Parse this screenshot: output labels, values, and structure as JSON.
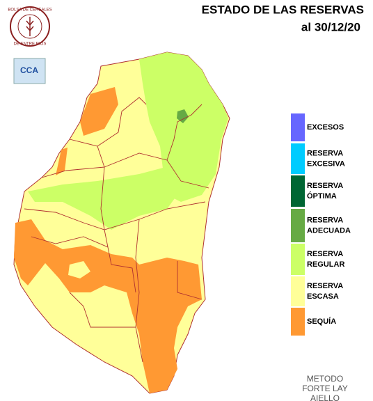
{
  "header": {
    "title": "ESTADO DE LAS RESERVAS",
    "date": "al 30/12/20"
  },
  "logo": {
    "ring_top": "BOLSA DE CEREALES",
    "ring_bottom": "DE ENTRE RIOS",
    "badge": "CCA"
  },
  "legend": [
    {
      "lines": [
        "EXCESOS"
      ],
      "color": "#6666ff"
    },
    {
      "lines": [
        "RESERVA",
        "EXCESIVA"
      ],
      "color": "#00ccff"
    },
    {
      "lines": [
        "RESERVA",
        "ÓPTIMA"
      ],
      "color": "#006633"
    },
    {
      "lines": [
        "RESERVA",
        "ADECUADA"
      ],
      "color": "#66aa44"
    },
    {
      "lines": [
        "RESERVA",
        "REGULAR"
      ],
      "color": "#ccff66"
    },
    {
      "lines": [
        "RESERVA",
        "ESCASA"
      ],
      "color": "#ffff99"
    },
    {
      "lines": [
        "SEQUÍA"
      ],
      "color": "#ff9933"
    }
  ],
  "method": [
    "METODO",
    "FORTE LAY",
    "AIELLO"
  ]
}
